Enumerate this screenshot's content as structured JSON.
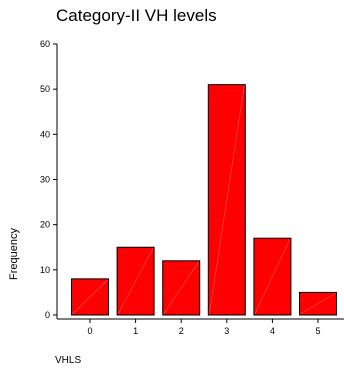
{
  "chart_data": {
    "type": "bar",
    "title": "Category-II VH levels",
    "xlabel": "VHLS",
    "ylabel": "Frequency",
    "categories": [
      "0",
      "1",
      "2",
      "3",
      "4",
      "5"
    ],
    "values": [
      8,
      15,
      12,
      51,
      17,
      5
    ],
    "ylim": [
      0,
      60
    ],
    "yticks": [
      "0",
      "10",
      "20",
      "30",
      "40",
      "50",
      "60"
    ],
    "grid": false,
    "bar_color": "#ff0000",
    "bar_edge_color": "#000000"
  }
}
